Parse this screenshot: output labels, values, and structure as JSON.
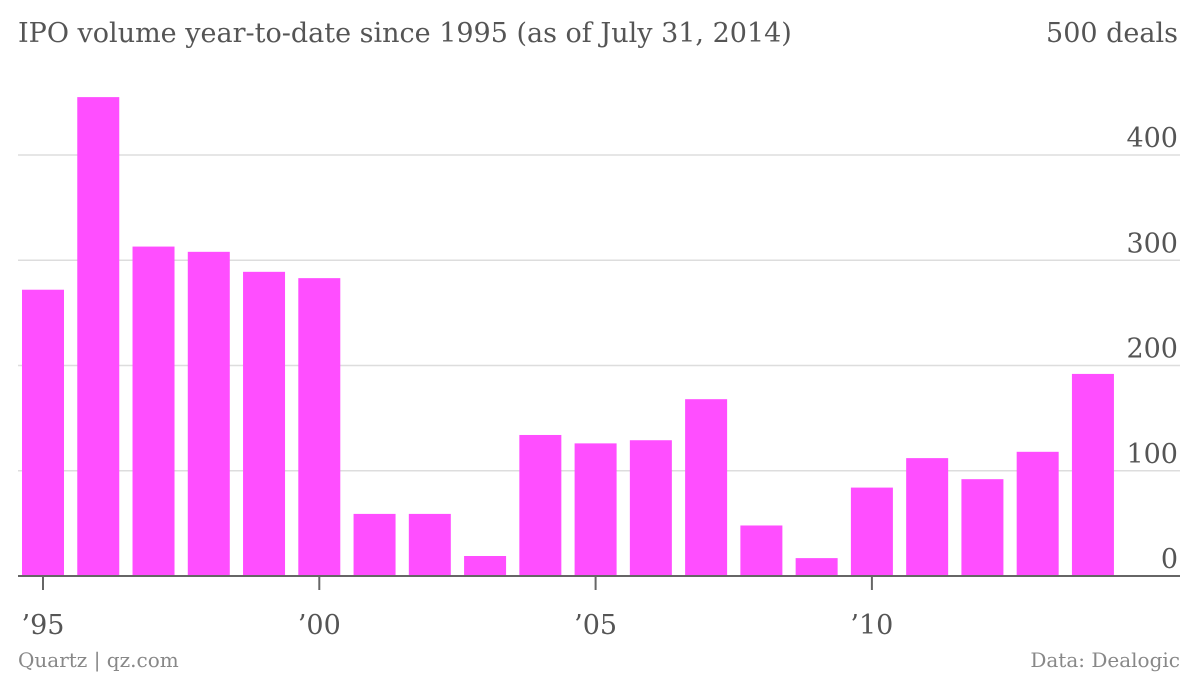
{
  "colors": {
    "bar": "#ff4eff",
    "text": "#555555",
    "footer": "#888888",
    "grid": "#dddddd",
    "axis": "#666666"
  },
  "chart_data": {
    "type": "bar",
    "title": "IPO volume year-to-date since 1995 (as of July 31, 2014)",
    "ytop_label": "500 deals",
    "x": [
      1995,
      1996,
      1997,
      1998,
      1999,
      2000,
      2001,
      2002,
      2003,
      2004,
      2005,
      2006,
      2007,
      2008,
      2009,
      2010,
      2011,
      2012,
      2013,
      2014
    ],
    "values": [
      272,
      455,
      313,
      308,
      289,
      283,
      59,
      59,
      19,
      134,
      126,
      129,
      168,
      48,
      17,
      84,
      112,
      92,
      118,
      192
    ],
    "ylim": [
      0,
      500
    ],
    "yticks": [
      0,
      100,
      200,
      300,
      400
    ],
    "ytick_labels": [
      "0",
      "100",
      "200",
      "300",
      "400"
    ],
    "xticks": [
      1995,
      2000,
      2005,
      2010
    ],
    "xtick_labels": [
      "’95",
      "’00",
      "’05",
      "’10"
    ],
    "y_axis_position": "right",
    "grid": true,
    "legend": "none"
  },
  "footer": {
    "source_left": "Quartz | qz.com",
    "source_right": "Data: Dealogic"
  }
}
